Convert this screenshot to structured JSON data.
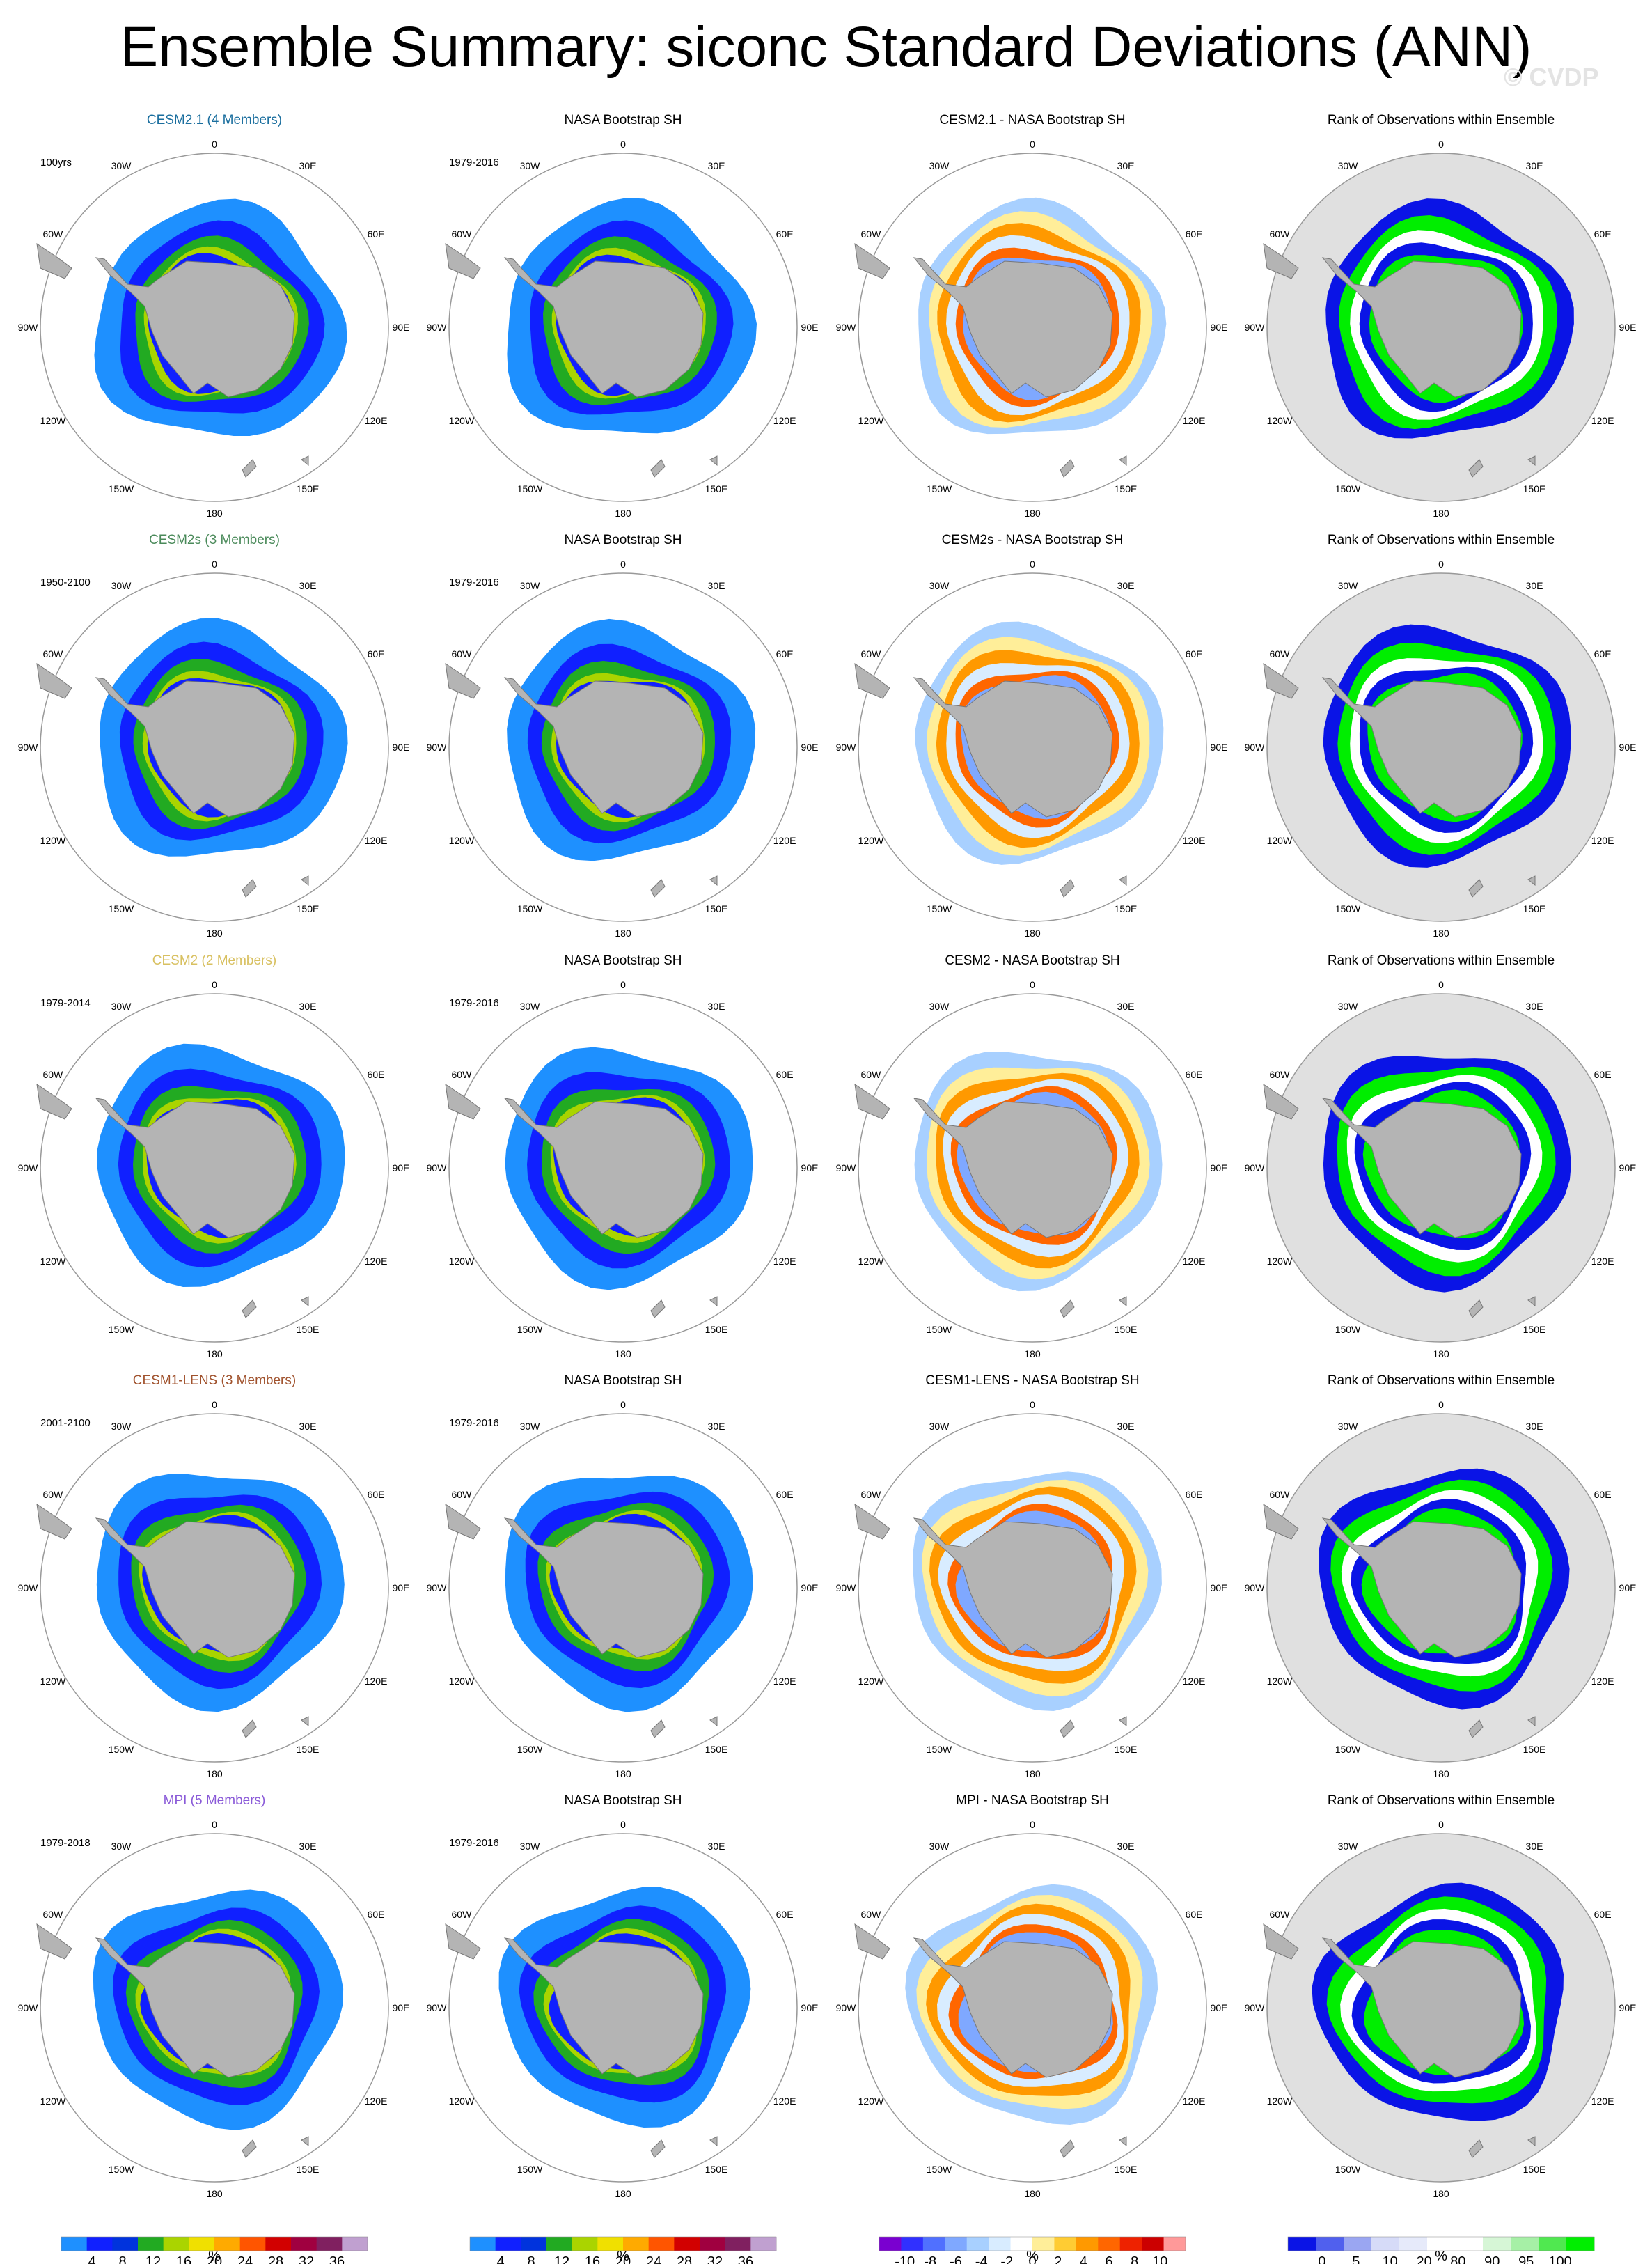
{
  "title": "Ensemble Summary: siconc Standard Deviations (ANN)",
  "watermark": "© CVDP",
  "obs_name": "NASA Bootstrap SH",
  "obs_period": "1979-2016",
  "rank_title": "Rank of Observations within Ensemble",
  "lon_labels": [
    "0",
    "30E",
    "60E",
    "90E",
    "120E",
    "150E",
    "180",
    "150W",
    "120W",
    "90W",
    "60W",
    "30W"
  ],
  "rows": [
    {
      "model": "CESM2.1 (4 Members)",
      "model_color": "#1a6e9e",
      "period": "100yrs",
      "diff": "CESM2.1 - NASA Bootstrap SH"
    },
    {
      "model": "CESM2s (3 Members)",
      "model_color": "#4a8a5a",
      "period": "1950-2100",
      "diff": "CESM2s - NASA Bootstrap SH"
    },
    {
      "model": "CESM2 (2 Members)",
      "model_color": "#d8c060",
      "period": "1979-2014",
      "diff": "CESM2 - NASA Bootstrap SH"
    },
    {
      "model": "CESM1-LENS (3 Members)",
      "model_color": "#a0522d",
      "period": "2001-2100",
      "diff": "CESM1-LENS - NASA Bootstrap SH"
    },
    {
      "model": "MPI (5 Members)",
      "model_color": "#8a5ad8",
      "period": "1979-2018",
      "diff": "MPI - NASA Bootstrap SH"
    }
  ],
  "colorbars": {
    "std": {
      "colors": [
        "#1e90ff",
        "#1020ff",
        "#0033dd",
        "#22aa22",
        "#aad400",
        "#f0e000",
        "#ffaa00",
        "#ff5500",
        "#d20000",
        "#a00040",
        "#802060",
        "#c0a0d0"
      ],
      "labels": [
        "4",
        "8",
        "12",
        "16",
        "20",
        "24",
        "28",
        "32",
        "36"
      ],
      "unit": "%"
    },
    "diff": {
      "colors": [
        "#7a00d0",
        "#3030ff",
        "#5070ff",
        "#7fa8ff",
        "#a8d0ff",
        "#d8ecff",
        "#ffffff",
        "#ffee99",
        "#ffcc33",
        "#ff9900",
        "#ff6600",
        "#ee2200",
        "#cc0000",
        "#ff9999"
      ],
      "labels": [
        "-10",
        "-8",
        "-6",
        "-4",
        "-2",
        "0",
        "2",
        "4",
        "6",
        "8",
        "10"
      ],
      "unit": "%"
    },
    "rank": {
      "colors": [
        "#0a14e6",
        "#5060ee",
        "#9aa6f2",
        "#d6dbf8",
        "#e6eafa",
        "#ffffff",
        "#ffffff",
        "#d6f6d6",
        "#a6f0a6",
        "#50e850",
        "#00ee00"
      ],
      "labels": [
        "0",
        "5",
        "10",
        "20",
        "80",
        "90",
        "95",
        "100"
      ],
      "unit": "%"
    }
  }
}
